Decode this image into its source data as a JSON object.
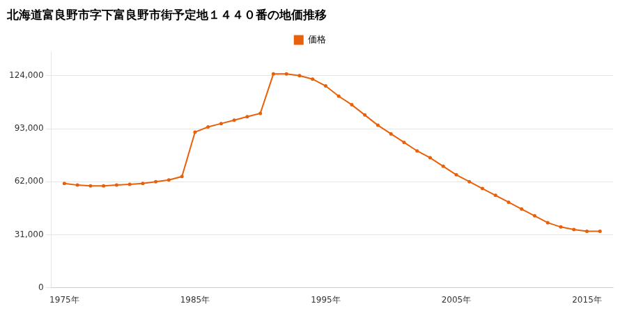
{
  "chart_data": {
    "type": "line",
    "title": "北海道富良野市字下富良野市街予定地１４４０番の地価推移",
    "legend": "top",
    "grid": "y",
    "marker": "circle",
    "line_style": "solid",
    "x": [
      1975,
      1976,
      1977,
      1978,
      1979,
      1980,
      1981,
      1982,
      1983,
      1984,
      1985,
      1986,
      1987,
      1988,
      1989,
      1990,
      1991,
      1992,
      1993,
      1994,
      1995,
      1996,
      1997,
      1998,
      1999,
      2000,
      2001,
      2002,
      2003,
      2004,
      2005,
      2006,
      2007,
      2008,
      2009,
      2010,
      2011,
      2012,
      2013,
      2014,
      2015,
      2016
    ],
    "series": [
      {
        "name": "価格",
        "color": "#E8600A",
        "values": [
          61000,
          60000,
          59500,
          59500,
          60000,
          60500,
          61000,
          62000,
          63000,
          65000,
          91000,
          94000,
          96000,
          98000,
          100000,
          102000,
          125000,
          125000,
          124000,
          122000,
          118000,
          112000,
          107000,
          101000,
          95000,
          90000,
          85000,
          80000,
          76000,
          71000,
          66000,
          62000,
          58000,
          54000,
          50000,
          46000,
          42000,
          38000,
          35500,
          34000,
          33000,
          33000
        ]
      }
    ],
    "xlim": [
      1974,
      2017
    ],
    "xticks": [
      {
        "value": 1975,
        "label": "1975年"
      },
      {
        "value": 1985,
        "label": "1985年"
      },
      {
        "value": 1995,
        "label": "1995年"
      },
      {
        "value": 2005,
        "label": "2005年"
      },
      {
        "value": 2015,
        "label": "2015年"
      }
    ],
    "ylim": [
      0,
      138000
    ],
    "yticks": [
      0,
      {
        "value": 31000,
        "label": "31,000"
      },
      {
        "value": 62000,
        "label": "62,000"
      },
      {
        "value": 93000,
        "label": "93,000"
      },
      {
        "value": 124000,
        "label": "124,000"
      }
    ]
  }
}
